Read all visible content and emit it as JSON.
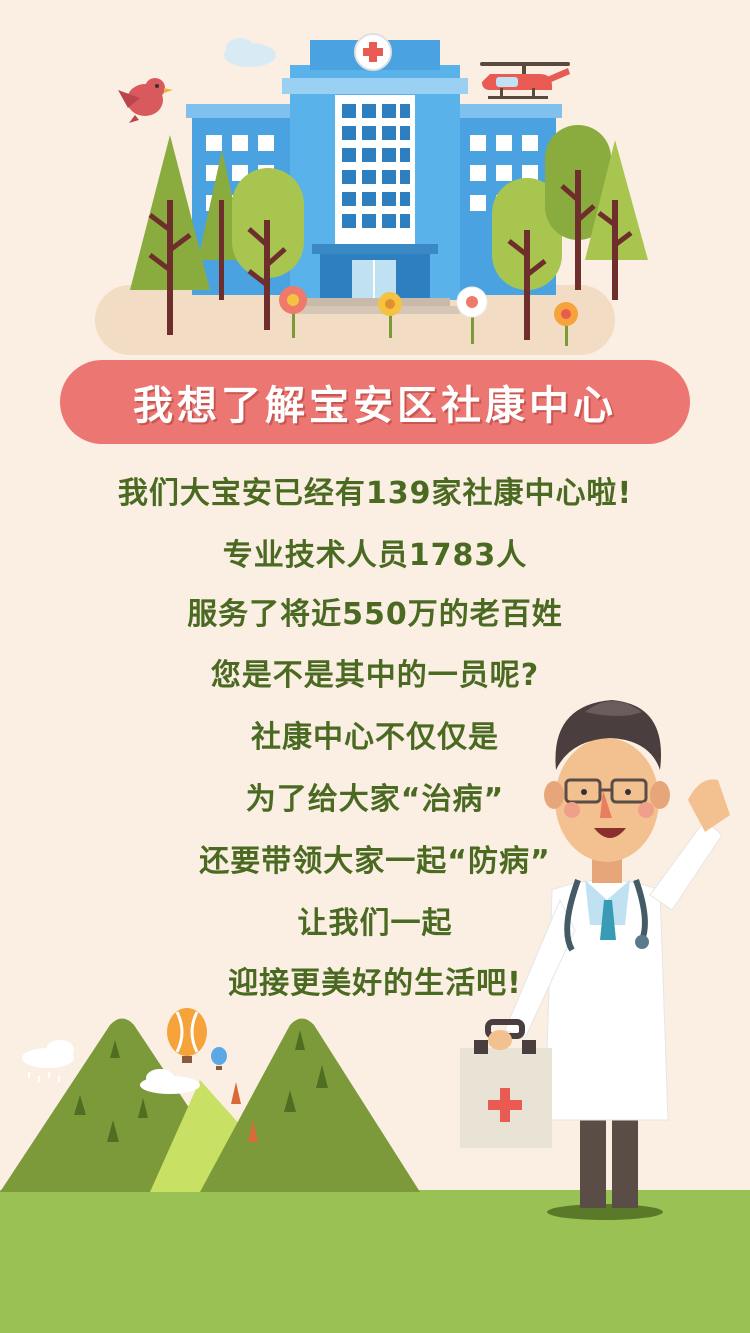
{
  "banner": {
    "title": "我想了解宝安区社康中心"
  },
  "message_lines": [
    "我们大宝安已经有139家社康中心啦!",
    "专业技术人员1783人",
    "服务了将近550万的老百姓",
    "您是不是其中的一员呢?",
    "社康中心不仅仅是",
    "为了给大家“治病”",
    "还要带领大家一起“防病”",
    "让我们一起",
    "迎接更美好的生活吧!"
  ],
  "colors": {
    "background": "#fbeee3",
    "banner": "#ec7772",
    "text": "#4a6a21",
    "grass": "#9ac153",
    "hospital": "#5aa8e6"
  },
  "illustrations": [
    "hospital-icon",
    "helicopter-icon",
    "bird-icon",
    "doctor-icon",
    "first-aid-kit-icon",
    "hot-air-balloon-icon",
    "mountain-icon",
    "tree-icon",
    "flower-icon",
    "cloud-icon"
  ]
}
